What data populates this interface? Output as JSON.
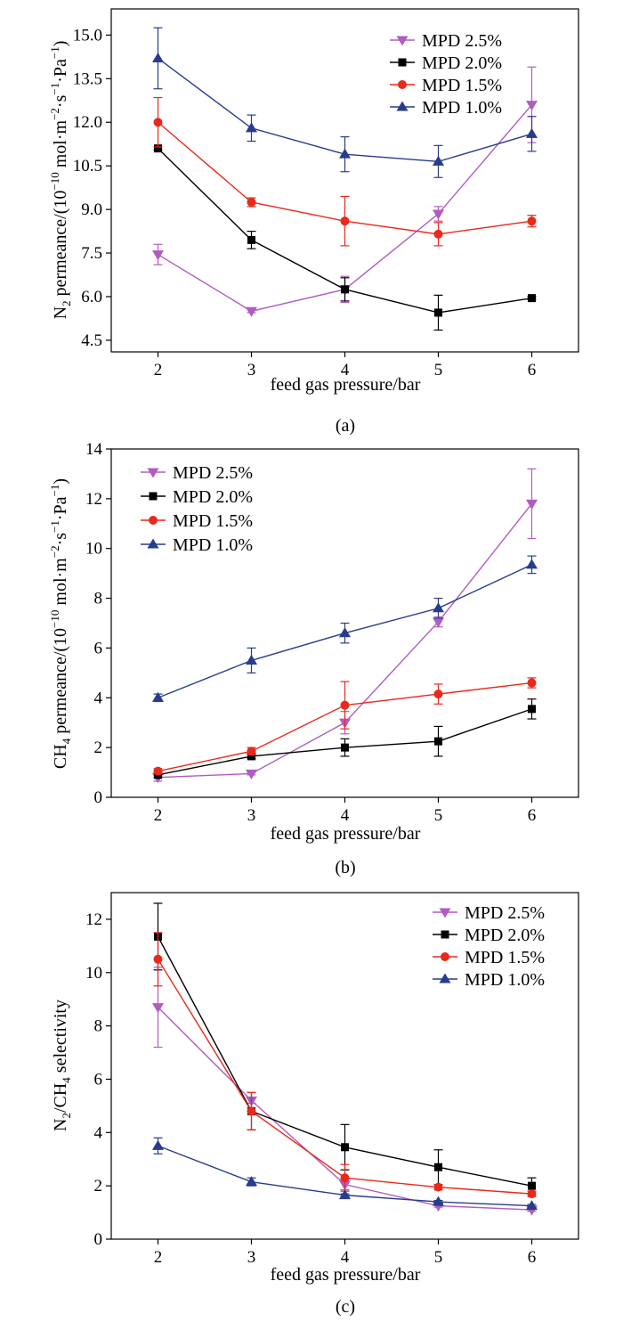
{
  "chart_data": [
    {
      "type": "line",
      "panel": "(a)",
      "x": [
        2,
        3,
        4,
        5,
        6
      ],
      "xlabel": "feed gas pressure/bar",
      "ylabel": {
        "prefix": "N",
        "sub": "2",
        "mid": " permeance/(10",
        "sup1": "−10",
        "unit": " mol·m",
        "sup2": "−2",
        "dot": "·s",
        "sup3": "−1",
        "end": "·Pa",
        "sup4": "−1",
        "close": ")"
      },
      "xlim": [
        1.5,
        6.5
      ],
      "ylim": [
        4.1,
        15.9
      ],
      "xticks": [
        "2",
        "3",
        "4",
        "5",
        "6"
      ],
      "yticks": [
        "4.5",
        "6.0",
        "7.5",
        "9.0",
        "10.5",
        "12.0",
        "13.5",
        "15.0"
      ],
      "legend_position": "top-right",
      "series": [
        {
          "name": "MPD 2.5%",
          "color": "#b05cc0",
          "marker": "triangle-down",
          "values": [
            7.45,
            5.5,
            6.25,
            8.85,
            12.6
          ],
          "errors": [
            0.35,
            0.05,
            0.45,
            0.25,
            1.3
          ]
        },
        {
          "name": "MPD 2.0%",
          "color": "#000000",
          "marker": "square",
          "values": [
            11.1,
            7.95,
            6.25,
            5.45,
            5.95
          ],
          "errors": [
            0.05,
            0.3,
            0.4,
            0.6,
            0.05
          ]
        },
        {
          "name": "MPD 1.5%",
          "color": "#e8291c",
          "marker": "circle",
          "values": [
            12.0,
            9.25,
            8.6,
            8.15,
            8.6
          ],
          "errors": [
            0.85,
            0.15,
            0.85,
            0.4,
            0.2
          ]
        },
        {
          "name": "MPD 1.0%",
          "color": "#283c8c",
          "marker": "triangle-up",
          "values": [
            14.2,
            11.8,
            10.9,
            10.65,
            11.6
          ],
          "errors": [
            1.05,
            0.45,
            0.6,
            0.55,
            0.6
          ]
        }
      ]
    },
    {
      "type": "line",
      "panel": "(b)",
      "x": [
        2,
        3,
        4,
        5,
        6
      ],
      "xlabel": "feed gas pressure/bar",
      "ylabel": {
        "prefix": "CH",
        "sub": "4",
        "mid": " permeance/(10",
        "sup1": "−10",
        "unit": " mol·m",
        "sup2": "−2",
        "dot": "·s",
        "sup3": "−1",
        "end": "·Pa",
        "sup4": "−1",
        "close": ")"
      },
      "xlim": [
        1.5,
        6.5
      ],
      "ylim": [
        0,
        14
      ],
      "xticks": [
        "2",
        "3",
        "4",
        "5",
        "6"
      ],
      "yticks": [
        "0",
        "2",
        "4",
        "6",
        "8",
        "10",
        "12",
        "14"
      ],
      "legend_position": "top-left",
      "series": [
        {
          "name": "MPD 2.5%",
          "color": "#b05cc0",
          "marker": "triangle-down",
          "values": [
            0.8,
            0.95,
            3.0,
            7.05,
            11.8
          ],
          "errors": [
            0.15,
            0.05,
            0.45,
            0.2,
            1.4
          ]
        },
        {
          "name": "MPD 2.0%",
          "color": "#000000",
          "marker": "square",
          "values": [
            0.9,
            1.65,
            2.0,
            2.25,
            3.55
          ],
          "errors": [
            0.1,
            0.1,
            0.35,
            0.6,
            0.4
          ]
        },
        {
          "name": "MPD 1.5%",
          "color": "#e8291c",
          "marker": "circle",
          "values": [
            1.05,
            1.85,
            3.7,
            4.15,
            4.6
          ],
          "errors": [
            0.1,
            0.15,
            0.95,
            0.4,
            0.2
          ]
        },
        {
          "name": "MPD 1.0%",
          "color": "#283c8c",
          "marker": "triangle-up",
          "values": [
            4.0,
            5.5,
            6.6,
            7.6,
            9.35
          ],
          "errors": [
            0.15,
            0.5,
            0.4,
            0.4,
            0.35
          ]
        }
      ]
    },
    {
      "type": "line",
      "panel": "(c)",
      "x": [
        2,
        3,
        4,
        5,
        6
      ],
      "xlabel": "feed gas pressure/bar",
      "ylabel": {
        "prefix": "N",
        "sub": "2",
        "mid": "/CH",
        "sub2": "4",
        "end": " selectivity"
      },
      "xlim": [
        1.5,
        6.5
      ],
      "ylim": [
        0,
        13
      ],
      "xticks": [
        "2",
        "3",
        "4",
        "5",
        "6"
      ],
      "yticks": [
        "0",
        "2",
        "4",
        "6",
        "8",
        "10",
        "12"
      ],
      "legend_position": "top-right",
      "series": [
        {
          "name": "MPD 2.5%",
          "color": "#b05cc0",
          "marker": "triangle-down",
          "values": [
            8.7,
            5.2,
            2.05,
            1.25,
            1.1
          ],
          "errors": [
            1.5,
            0.1,
            0.2,
            0.05,
            0.05
          ]
        },
        {
          "name": "MPD 2.0%",
          "color": "#000000",
          "marker": "square",
          "values": [
            11.35,
            4.8,
            3.45,
            2.7,
            2.0
          ],
          "errors": [
            1.25,
            0.7,
            0.85,
            0.65,
            0.3
          ]
        },
        {
          "name": "MPD 1.5%",
          "color": "#e8291c",
          "marker": "circle",
          "values": [
            10.5,
            4.8,
            2.3,
            1.95,
            1.7
          ],
          "errors": [
            1.0,
            0.7,
            0.5,
            0.1,
            0.1
          ]
        },
        {
          "name": "MPD 1.0%",
          "color": "#283c8c",
          "marker": "triangle-up",
          "values": [
            3.5,
            2.15,
            1.65,
            1.4,
            1.25
          ],
          "errors": [
            0.3,
            0.15,
            0.05,
            0.05,
            0.05
          ]
        }
      ]
    }
  ]
}
